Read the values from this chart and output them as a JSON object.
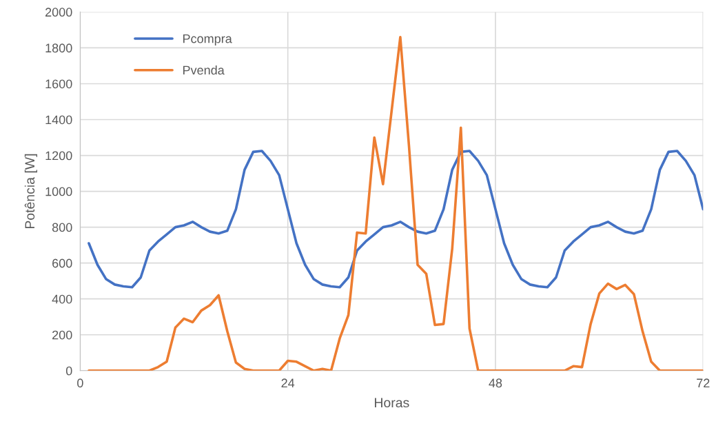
{
  "chart_data": {
    "type": "line",
    "xlabel": "Horas",
    "ylabel": "Potência [W]",
    "xlim": [
      0,
      72
    ],
    "xticks": [
      0,
      24,
      48,
      72
    ],
    "ylim": [
      0,
      2000
    ],
    "yticks": [
      0,
      200,
      400,
      600,
      800,
      1000,
      1200,
      1400,
      1600,
      1800,
      2000
    ],
    "grid": true,
    "legend": "top left",
    "marker": "none",
    "line_style": "solid",
    "x": [
      1,
      2,
      3,
      4,
      5,
      6,
      7,
      8,
      9,
      10,
      11,
      12,
      13,
      14,
      15,
      16,
      17,
      18,
      19,
      20,
      21,
      22,
      23,
      24,
      25,
      26,
      27,
      28,
      29,
      30,
      31,
      32,
      33,
      34,
      35,
      36,
      37,
      38,
      39,
      40,
      41,
      42,
      43,
      44,
      45,
      46,
      47,
      48,
      49,
      50,
      51,
      52,
      53,
      54,
      55,
      56,
      57,
      58,
      59,
      60,
      61,
      62,
      63,
      64,
      65,
      66,
      67,
      68,
      69,
      70,
      71,
      72
    ],
    "series": [
      {
        "name": "Pcompra",
        "color": "#4472c4",
        "values": [
          710,
          590,
          510,
          480,
          470,
          465,
          520,
          670,
          720,
          760,
          800,
          810,
          830,
          800,
          775,
          765,
          780,
          900,
          1120,
          1220,
          1225,
          1170,
          1090,
          900,
          710,
          590,
          510,
          480,
          470,
          465,
          520,
          670,
          720,
          760,
          800,
          810,
          830,
          800,
          775,
          765,
          780,
          900,
          1120,
          1220,
          1225,
          1170,
          1090,
          900,
          710,
          590,
          510,
          480,
          470,
          465,
          520,
          670,
          720,
          760,
          800,
          810,
          830,
          800,
          775,
          765,
          780,
          900,
          1120,
          1220,
          1225,
          1170,
          1090,
          900
        ]
      },
      {
        "name": "Pvenda",
        "color": "#ed7d31",
        "values": [
          0,
          0,
          0,
          0,
          0,
          0,
          0,
          0,
          20,
          50,
          240,
          290,
          270,
          335,
          365,
          420,
          220,
          45,
          10,
          0,
          0,
          0,
          0,
          55,
          50,
          25,
          0,
          10,
          0,
          180,
          310,
          770,
          765,
          1300,
          1040,
          1450,
          1860,
          1255,
          590,
          540,
          255,
          260,
          680,
          1355,
          235,
          0,
          0,
          0,
          0,
          0,
          0,
          0,
          0,
          0,
          0,
          0,
          25,
          20,
          260,
          430,
          485,
          455,
          478,
          427,
          220,
          50,
          0,
          0,
          0,
          0,
          0,
          0
        ]
      }
    ]
  }
}
